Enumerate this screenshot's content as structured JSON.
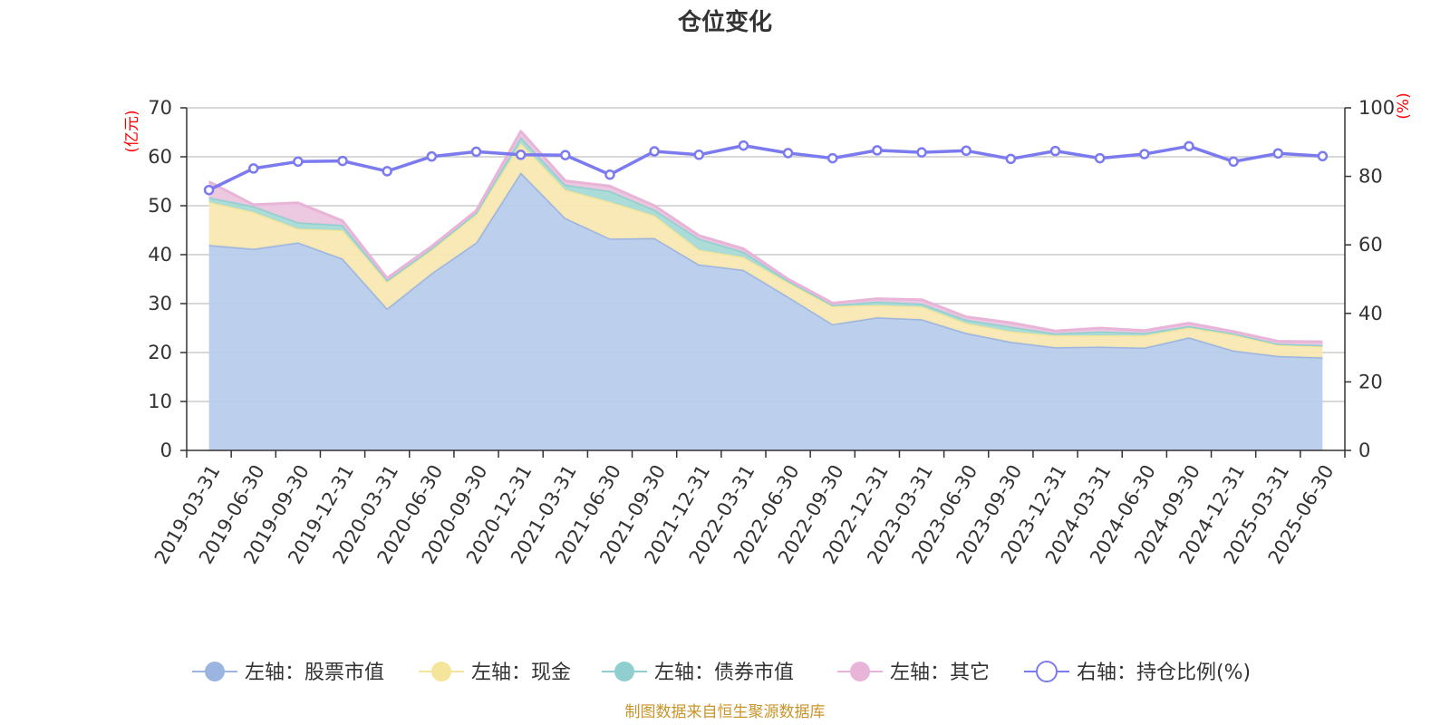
{
  "chart_data": {
    "type": "area",
    "title": "仓位变化",
    "left_axis": {
      "unit_label": "(亿元)",
      "ylim": [
        0,
        70
      ],
      "ticks": [
        0,
        10,
        20,
        30,
        40,
        50,
        60,
        70
      ]
    },
    "right_axis": {
      "unit_label": "(%)",
      "ylim": [
        0,
        100
      ],
      "ticks": [
        0,
        20,
        40,
        60,
        80,
        100
      ]
    },
    "categories": [
      "2019-03-31",
      "2019-06-30",
      "2019-09-30",
      "2019-12-31",
      "2020-03-31",
      "2020-06-30",
      "2020-09-30",
      "2020-12-31",
      "2021-03-31",
      "2021-06-30",
      "2021-09-30",
      "2021-12-31",
      "2022-03-31",
      "2022-06-30",
      "2022-09-30",
      "2022-12-31",
      "2023-03-31",
      "2023-06-30",
      "2023-09-30",
      "2023-12-31",
      "2024-03-31",
      "2024-06-30",
      "2024-09-30",
      "2024-12-31",
      "2025-03-31",
      "2025-06-30"
    ],
    "series": [
      {
        "name": "左轴：股票市值",
        "axis": "left",
        "stacked": true,
        "color": "#9bb4e0",
        "fill": "#b8cceb",
        "values": [
          42.0,
          41.2,
          42.5,
          39.2,
          29.0,
          36.2,
          42.5,
          56.8,
          47.5,
          43.3,
          43.4,
          38.0,
          36.9,
          31.4,
          25.8,
          27.2,
          26.8,
          24.0,
          22.2,
          21.1,
          21.2,
          21.0,
          23.1,
          20.4,
          19.3,
          19.0
        ]
      },
      {
        "name": "左轴：现金",
        "axis": "left",
        "stacked": true,
        "color": "#f5e59a",
        "fill": "#f8e8b3",
        "values": [
          8.8,
          7.5,
          2.8,
          5.8,
          5.5,
          4.8,
          5.8,
          6.0,
          5.8,
          7.5,
          4.6,
          3.0,
          2.6,
          2.9,
          3.7,
          2.5,
          2.6,
          2.0,
          2.1,
          2.4,
          2.3,
          2.5,
          2.0,
          3.3,
          2.3,
          2.3
        ]
      },
      {
        "name": "左轴：债券市值",
        "axis": "left",
        "stacked": true,
        "color": "#8fcfcf",
        "fill": "#a6dad6",
        "values": [
          0.9,
          1.2,
          1.3,
          1.1,
          0.3,
          0.3,
          0.3,
          1.2,
          1.0,
          2.2,
          1.2,
          2.3,
          1.1,
          0.4,
          0.2,
          0.7,
          0.6,
          0.7,
          1.0,
          0.4,
          0.8,
          0.5,
          0.3,
          0.2,
          0.2,
          0.2
        ]
      },
      {
        "name": "左轴：其它",
        "axis": "left",
        "stacked": true,
        "color": "#e8b4d8",
        "fill": "#ecc6df",
        "values": [
          3.2,
          0.3,
          4.0,
          0.8,
          0.4,
          0.4,
          0.4,
          1.2,
          0.8,
          1.0,
          0.8,
          0.6,
          0.6,
          0.3,
          0.4,
          0.6,
          0.8,
          0.6,
          0.8,
          0.5,
          0.7,
          0.5,
          0.6,
          0.4,
          0.5,
          0.7
        ]
      },
      {
        "name": "右轴：持仓比例(%)",
        "axis": "right",
        "type": "line",
        "color": "#7b7bef",
        "values": [
          76.0,
          82.3,
          84.3,
          84.5,
          81.5,
          85.8,
          87.2,
          86.3,
          86.2,
          80.5,
          87.3,
          86.3,
          89.0,
          86.8,
          85.3,
          87.6,
          87.0,
          87.5,
          85.1,
          87.4,
          85.3,
          86.5,
          88.8,
          84.3,
          86.7,
          85.9
        ]
      }
    ],
    "grid": true,
    "legend_position": "bottom"
  },
  "source_note": "制图数据来自恒生聚源数据库"
}
